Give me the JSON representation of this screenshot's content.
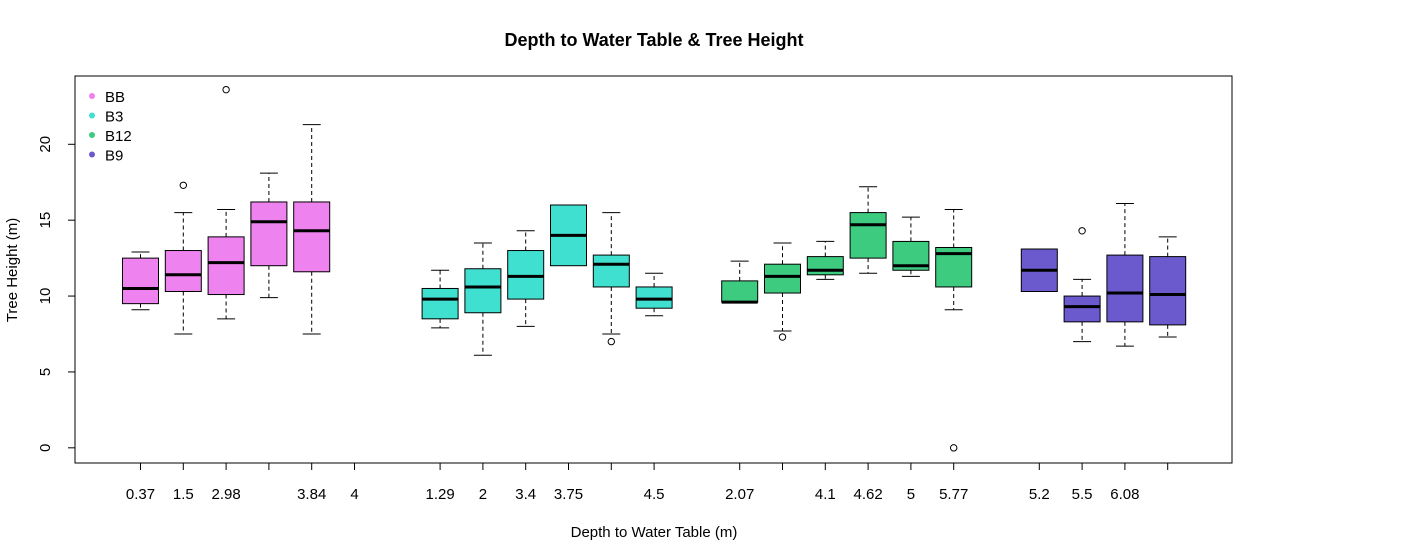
{
  "chart_data": {
    "type": "boxplot",
    "title": "Depth to Water Table & Tree Height",
    "xlabel": "Depth to Water Table (m)",
    "ylabel": "Tree Height (m)",
    "ylim": [
      -1,
      24.5
    ],
    "yticks": [
      0,
      5,
      10,
      15,
      20
    ],
    "grid": false,
    "legend": {
      "placement": "top-left",
      "entries": [
        {
          "label": "BB",
          "color": "#EE82EE"
        },
        {
          "label": "B3",
          "color": "#40E0D0"
        },
        {
          "label": "B12",
          "color": "#3CCB7F"
        },
        {
          "label": "B9",
          "color": "#6A5ACD"
        }
      ]
    },
    "x_tick_labels": [
      {
        "slot": 1,
        "label": "0.37"
      },
      {
        "slot": 2,
        "label": "1.5"
      },
      {
        "slot": 3,
        "label": "2.98"
      },
      {
        "slot": 4,
        "label": ""
      },
      {
        "slot": 5,
        "label": "3.84"
      },
      {
        "slot": 6,
        "label": "4"
      },
      {
        "slot": 8,
        "label": "1.29"
      },
      {
        "slot": 9,
        "label": "2"
      },
      {
        "slot": 10,
        "label": "3.4"
      },
      {
        "slot": 11,
        "label": "3.75"
      },
      {
        "slot": 12,
        "label": ""
      },
      {
        "slot": 13,
        "label": "4.5"
      },
      {
        "slot": 15,
        "label": "2.07"
      },
      {
        "slot": 16,
        "label": ""
      },
      {
        "slot": 17,
        "label": "4.1"
      },
      {
        "slot": 18,
        "label": "4.62"
      },
      {
        "slot": 19,
        "label": "5"
      },
      {
        "slot": 20,
        "label": "5.77"
      },
      {
        "slot": 22,
        "label": "5.2"
      },
      {
        "slot": 23,
        "label": "5.5"
      },
      {
        "slot": 24,
        "label": "6.08"
      },
      {
        "slot": 25,
        "label": ""
      }
    ],
    "boxes": [
      {
        "group": "BB",
        "slot": 1,
        "whisker_low": 9.1,
        "q1": 9.5,
        "median": 10.5,
        "q3": 12.5,
        "whisker_high": 12.9,
        "outliers": []
      },
      {
        "group": "BB",
        "slot": 2,
        "whisker_low": 7.5,
        "q1": 10.3,
        "median": 11.4,
        "q3": 13.0,
        "whisker_high": 15.5,
        "outliers": [
          17.3
        ]
      },
      {
        "group": "BB",
        "slot": 3,
        "whisker_low": 8.5,
        "q1": 10.1,
        "median": 12.2,
        "q3": 13.9,
        "whisker_high": 15.7,
        "outliers": [
          23.6
        ]
      },
      {
        "group": "BB",
        "slot": 4,
        "whisker_low": 9.9,
        "q1": 12.0,
        "median": 14.9,
        "q3": 16.2,
        "whisker_high": 18.1,
        "outliers": []
      },
      {
        "group": "BB",
        "slot": 5,
        "whisker_low": 7.5,
        "q1": 11.6,
        "median": 14.3,
        "q3": 16.2,
        "whisker_high": 21.3,
        "outliers": []
      },
      {
        "group": "B3",
        "slot": 8,
        "whisker_low": 7.9,
        "q1": 8.5,
        "median": 9.8,
        "q3": 10.5,
        "whisker_high": 11.7,
        "outliers": []
      },
      {
        "group": "B3",
        "slot": 9,
        "whisker_low": 6.1,
        "q1": 8.9,
        "median": 10.6,
        "q3": 11.8,
        "whisker_high": 13.5,
        "outliers": []
      },
      {
        "group": "B3",
        "slot": 10,
        "whisker_low": 8.0,
        "q1": 9.8,
        "median": 11.3,
        "q3": 13.0,
        "whisker_high": 14.3,
        "outliers": []
      },
      {
        "group": "B3",
        "slot": 11,
        "whisker_low": 12.0,
        "q1": 12.0,
        "median": 14.0,
        "q3": 16.0,
        "whisker_high": 16.0,
        "outliers": []
      },
      {
        "group": "B3",
        "slot": 12,
        "whisker_low": 7.5,
        "q1": 10.6,
        "median": 12.1,
        "q3": 12.7,
        "whisker_high": 15.5,
        "outliers": [
          7.0
        ]
      },
      {
        "group": "B3",
        "slot": 13,
        "whisker_low": 8.7,
        "q1": 9.2,
        "median": 9.8,
        "q3": 10.6,
        "whisker_high": 11.5,
        "outliers": []
      },
      {
        "group": "B12",
        "slot": 15,
        "whisker_low": 9.6,
        "q1": 9.6,
        "median": 9.6,
        "q3": 11.0,
        "whisker_high": 12.3,
        "outliers": []
      },
      {
        "group": "B12",
        "slot": 16,
        "whisker_low": 7.7,
        "q1": 10.2,
        "median": 11.3,
        "q3": 12.1,
        "whisker_high": 13.5,
        "outliers": [
          7.3
        ]
      },
      {
        "group": "B12",
        "slot": 17,
        "whisker_low": 11.1,
        "q1": 11.4,
        "median": 11.7,
        "q3": 12.6,
        "whisker_high": 13.6,
        "outliers": []
      },
      {
        "group": "B12",
        "slot": 18,
        "whisker_low": 11.5,
        "q1": 12.5,
        "median": 14.7,
        "q3": 15.5,
        "whisker_high": 17.2,
        "outliers": []
      },
      {
        "group": "B12",
        "slot": 19,
        "whisker_low": 11.3,
        "q1": 11.7,
        "median": 12.0,
        "q3": 13.6,
        "whisker_high": 15.2,
        "outliers": []
      },
      {
        "group": "B12",
        "slot": 20,
        "whisker_low": 9.1,
        "q1": 10.6,
        "median": 12.8,
        "q3": 13.2,
        "whisker_high": 15.7,
        "outliers": [
          0.0
        ]
      },
      {
        "group": "B9",
        "slot": 22,
        "whisker_low": 10.3,
        "q1": 10.3,
        "median": 11.7,
        "q3": 13.1,
        "whisker_high": 13.1,
        "outliers": []
      },
      {
        "group": "B9",
        "slot": 23,
        "whisker_low": 7.0,
        "q1": 8.3,
        "median": 9.3,
        "q3": 10.0,
        "whisker_high": 11.1,
        "outliers": [
          14.3
        ]
      },
      {
        "group": "B9",
        "slot": 24,
        "whisker_low": 6.7,
        "q1": 8.3,
        "median": 10.2,
        "q3": 12.7,
        "whisker_high": 16.1,
        "outliers": []
      },
      {
        "group": "B9",
        "slot": 25,
        "whisker_low": 7.3,
        "q1": 8.1,
        "median": 10.1,
        "q3": 12.6,
        "whisker_high": 13.9,
        "outliers": []
      }
    ]
  }
}
